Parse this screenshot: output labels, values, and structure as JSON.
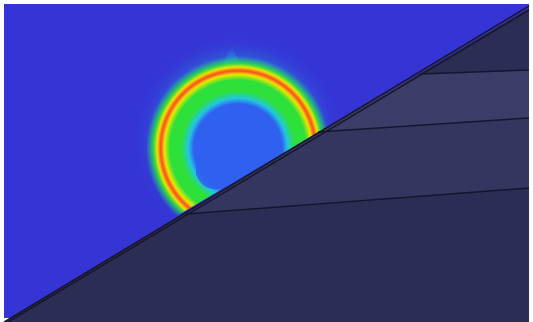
{
  "scene": {
    "description_type": "simulation-render",
    "colors": {
      "frame": "#ffffff",
      "fluid_background": "#3535d6",
      "solid_dark": "#2c2d55",
      "solid_mid": "#35365f",
      "solid_light": "#3b3c68",
      "edge": "#15162c",
      "ring_outer": "#10d48c",
      "ring_green": "#2ee03a",
      "ring_yellow": "#e8e800",
      "ring_red": "#ff4a20",
      "glow_cyan": "#20c8e0",
      "ring_inner_fluid": "#2f60f0"
    },
    "elements": [
      "fluid-domain",
      "pressure-ring",
      "plume-tail",
      "sloped-wall",
      "upper-wedge",
      "middle-wedge",
      "wall-edge-lines"
    ]
  }
}
